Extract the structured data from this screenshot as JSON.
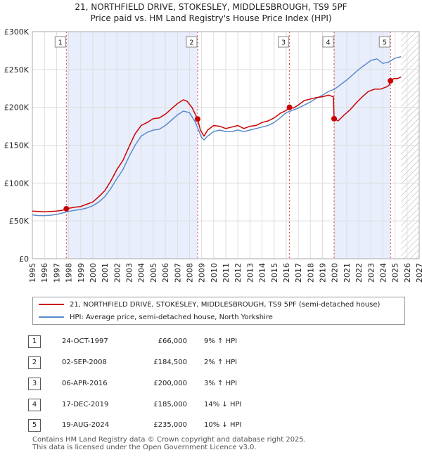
{
  "title": {
    "line1": "21, NORTHFIELD DRIVE, STOKESLEY, MIDDLESBROUGH, TS9 5PF",
    "line2": "Price paid vs. HM Land Registry's House Price Index (HPI)"
  },
  "colors": {
    "price_line": "#cc0000",
    "hpi_line": "#5b8ccb",
    "shade": "#e8eefb",
    "hatch": "#aaaaaa",
    "marker_line": "#dd4444"
  },
  "chart_data": {
    "type": "line",
    "title": "21, NORTHFIELD DRIVE, STOKESLEY, MIDDLESBROUGH, TS9 5PF — Price paid vs. HM Land Registry's House Price Index (HPI)",
    "xlim": [
      1995,
      2027
    ],
    "ylim": [
      0,
      300000
    ],
    "y_ticks": [
      0,
      50000,
      100000,
      150000,
      200000,
      250000,
      300000
    ],
    "y_tick_labels": [
      "£0",
      "£50K",
      "£100K",
      "£150K",
      "£200K",
      "£250K",
      "£300K"
    ],
    "x_ticks": [
      1995,
      1996,
      1997,
      1998,
      1999,
      2000,
      2001,
      2002,
      2003,
      2004,
      2005,
      2006,
      2007,
      2008,
      2009,
      2010,
      2011,
      2012,
      2013,
      2014,
      2015,
      2016,
      2017,
      2018,
      2019,
      2020,
      2021,
      2022,
      2023,
      2024,
      2025,
      2026,
      2027
    ],
    "x_tick_labels": [
      "1995",
      "1996",
      "1997",
      "1998",
      "1999",
      "2000",
      "2001",
      "2002",
      "2003",
      "2004",
      "2005",
      "2006",
      "2007",
      "2008",
      "2009",
      "2010",
      "2011",
      "2012",
      "2013",
      "2014",
      "2015",
      "2016",
      "2017",
      "2018",
      "2019",
      "2020",
      "2021",
      "2022",
      "2023",
      "2024",
      "2025",
      "2026",
      "2027"
    ],
    "grid": true,
    "shaded_periods": [
      [
        1997.81,
        2008.67
      ],
      [
        2019.96,
        2024.63
      ]
    ],
    "hatch_from": 2025.5,
    "series": [
      {
        "name": "21, NORTHFIELD DRIVE, STOKESLEY, MIDDLESBROUGH, TS9 5PF (semi-detached house)",
        "color": "#cc0000",
        "x": [
          1995,
          1995.5,
          1996,
          1996.5,
          1997,
          1997.5,
          1997.81,
          1998.5,
          1999,
          1999.5,
          2000,
          2000.5,
          2001,
          2001.5,
          2002,
          2002.5,
          2003,
          2003.5,
          2004,
          2004.5,
          2005,
          2005.5,
          2006,
          2006.5,
          2007,
          2007.5,
          2007.8,
          2008.2,
          2008.67,
          2008.9,
          2009.2,
          2009.5,
          2010,
          2010.5,
          2011,
          2011.5,
          2012,
          2012.5,
          2013,
          2013.5,
          2014,
          2014.5,
          2015,
          2015.5,
          2016,
          2016.27,
          2016.6,
          2017,
          2017.5,
          2018,
          2018.5,
          2019,
          2019.5,
          2019.9,
          2019.96,
          2020.3,
          2020.8,
          2021.3,
          2021.8,
          2022.3,
          2022.8,
          2023.3,
          2023.8,
          2024.3,
          2024.5,
          2024.63,
          2024.9,
          2025.2,
          2025.5
        ],
        "y": [
          63000,
          62500,
          62000,
          62500,
          63000,
          64000,
          66000,
          68000,
          69000,
          72000,
          75000,
          82000,
          90000,
          103000,
          118000,
          130000,
          148000,
          165000,
          176000,
          180000,
          185000,
          186000,
          191000,
          198000,
          205000,
          210000,
          208000,
          200000,
          184500,
          170000,
          162000,
          170000,
          176000,
          175000,
          172000,
          174000,
          176000,
          172000,
          175000,
          176000,
          180000,
          182000,
          186000,
          192000,
          196000,
          200000,
          199000,
          203000,
          209000,
          211000,
          213000,
          214000,
          216000,
          214000,
          185000,
          182000,
          190000,
          197000,
          206000,
          214000,
          221000,
          224000,
          224000,
          227000,
          229000,
          235000,
          238000,
          238000,
          240000
        ]
      },
      {
        "name": "HPI: Average price, semi-detached house, North Yorkshire",
        "color": "#5b8ccb",
        "x": [
          1995,
          1995.5,
          1996,
          1996.5,
          1997,
          1997.5,
          1998,
          1998.5,
          1999,
          1999.5,
          2000,
          2000.5,
          2001,
          2001.5,
          2002,
          2002.5,
          2003,
          2003.5,
          2004,
          2004.5,
          2005,
          2005.5,
          2006,
          2006.5,
          2007,
          2007.5,
          2008,
          2008.5,
          2009,
          2009.2,
          2009.5,
          2010,
          2010.5,
          2011,
          2011.5,
          2012,
          2012.5,
          2013,
          2013.5,
          2014,
          2014.5,
          2015,
          2015.5,
          2016,
          2016.5,
          2017,
          2017.5,
          2018,
          2018.5,
          2019,
          2019.5,
          2020,
          2020.5,
          2021,
          2021.5,
          2022,
          2022.5,
          2023,
          2023.5,
          2024,
          2024.5,
          2025,
          2025.3,
          2025.5
        ],
        "y": [
          58000,
          57000,
          57000,
          57500,
          58500,
          60500,
          62500,
          64000,
          65000,
          67000,
          70000,
          75000,
          82000,
          93000,
          106000,
          118000,
          135000,
          150000,
          162000,
          167000,
          170000,
          171000,
          176000,
          183000,
          190000,
          195000,
          193000,
          180000,
          160000,
          157000,
          162000,
          168000,
          170000,
          168000,
          168000,
          170000,
          168000,
          170000,
          172000,
          174000,
          176000,
          180000,
          186000,
          193000,
          196000,
          199000,
          203000,
          207000,
          212000,
          216000,
          221000,
          224000,
          230000,
          236000,
          243000,
          250000,
          256000,
          262000,
          264000,
          258000,
          260000,
          265000,
          266000,
          267000
        ]
      }
    ],
    "transactions": [
      {
        "num": "1",
        "x": 1997.81,
        "y": 66000
      },
      {
        "num": "2",
        "x": 2008.67,
        "y": 184500
      },
      {
        "num": "3",
        "x": 2016.27,
        "y": 200000
      },
      {
        "num": "4",
        "x": 2019.96,
        "y": 185000
      },
      {
        "num": "5",
        "x": 2024.63,
        "y": 235000
      }
    ]
  },
  "legend": {
    "price_label": "21, NORTHFIELD DRIVE, STOKESLEY, MIDDLESBROUGH, TS9 5PF (semi-detached house)",
    "hpi_label": "HPI: Average price, semi-detached house, North Yorkshire"
  },
  "transactions_table": [
    {
      "num": "1",
      "date": "24-OCT-1997",
      "price": "£66,000",
      "hpi": "9% ↑ HPI"
    },
    {
      "num": "2",
      "date": "02-SEP-2008",
      "price": "£184,500",
      "hpi": "2% ↑ HPI"
    },
    {
      "num": "3",
      "date": "06-APR-2016",
      "price": "£200,000",
      "hpi": "3% ↑ HPI"
    },
    {
      "num": "4",
      "date": "17-DEC-2019",
      "price": "£185,000",
      "hpi": "14% ↓ HPI"
    },
    {
      "num": "5",
      "date": "19-AUG-2024",
      "price": "£235,000",
      "hpi": "10% ↓ HPI"
    }
  ],
  "footer": {
    "line1": "Contains HM Land Registry data © Crown copyright and database right 2025.",
    "line2": "This data is licensed under the Open Government Licence v3.0."
  }
}
